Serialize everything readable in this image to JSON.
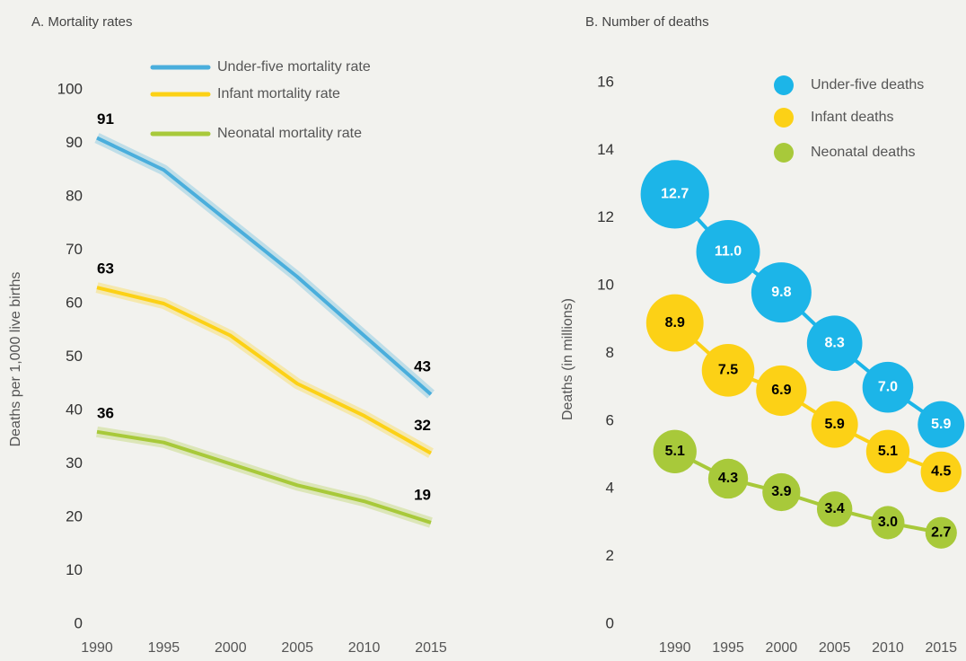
{
  "chart_data": [
    {
      "type": "line",
      "title": "A. Mortality rates",
      "ylabel": "Deaths per 1,000 live births",
      "x": [
        1990,
        1995,
        2000,
        2005,
        2010,
        2015
      ],
      "series": [
        {
          "name": "Under-five mortality rate",
          "color": "#4aaedc",
          "values": [
            91,
            85,
            75,
            65,
            54,
            43
          ]
        },
        {
          "name": "Infant mortality rate",
          "color": "#fcd116",
          "values": [
            63,
            60,
            54,
            45,
            39,
            32
          ]
        },
        {
          "name": "Neonatal mortality rate",
          "color": "#a8c93a",
          "values": [
            36,
            34,
            30,
            26,
            23,
            19
          ]
        }
      ],
      "xlim": [
        1990,
        2015
      ],
      "xticks": [
        1990,
        1995,
        2000,
        2005,
        2010,
        2015
      ],
      "ylim": [
        0,
        100
      ],
      "yticks": [
        0,
        10,
        20,
        30,
        40,
        50,
        60,
        70,
        80,
        90,
        100
      ]
    },
    {
      "type": "bubble",
      "title": "B. Number of deaths",
      "ylabel": "Deaths (in millions)",
      "x": [
        1990,
        1995,
        2000,
        2005,
        2010,
        2015
      ],
      "series": [
        {
          "name": "Under-five deaths",
          "color": "#1cb5e8",
          "label_color": "#ffffff",
          "values": [
            12.7,
            11.0,
            9.8,
            8.3,
            7.0,
            5.9
          ],
          "value_labels": [
            "12.7",
            "11.0",
            "9.8",
            "8.3",
            "7.0",
            "5.9"
          ]
        },
        {
          "name": "Infant deaths",
          "color": "#fcd116",
          "label_color": "#000000",
          "values": [
            8.9,
            7.5,
            6.9,
            5.9,
            5.1,
            4.5
          ],
          "value_labels": [
            "8.9",
            "7.5",
            "6.9",
            "5.9",
            "5.1",
            "4.5"
          ]
        },
        {
          "name": "Neonatal deaths",
          "color": "#a8c93a",
          "label_color": "#000000",
          "values": [
            5.1,
            4.3,
            3.9,
            3.4,
            3.0,
            2.7
          ],
          "value_labels": [
            "5.1",
            "4.3",
            "3.9",
            "3.4",
            "3.0",
            "2.7"
          ]
        }
      ],
      "xlim": [
        1988,
        2017
      ],
      "xticks": [
        1990,
        1995,
        2000,
        2005,
        2010,
        2015
      ],
      "ylim": [
        0,
        16
      ],
      "yticks": [
        0,
        2,
        4,
        6,
        8,
        10,
        12,
        14,
        16
      ]
    }
  ]
}
